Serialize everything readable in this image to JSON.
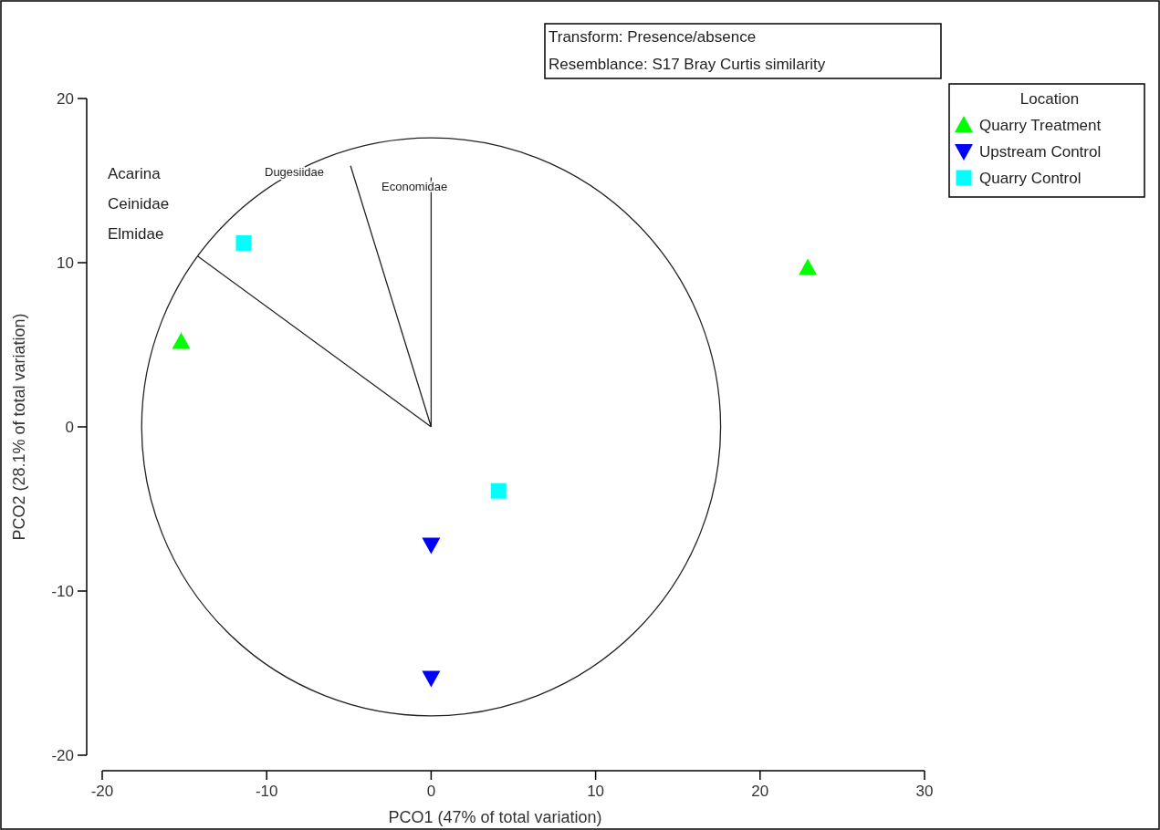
{
  "chart_data": {
    "type": "scatter",
    "xlabel": "PCO1 (47% of total variation)",
    "ylabel": "PCO2 (28.1% of total variation)",
    "legend_title": "Location",
    "legend": "top right",
    "grid": false,
    "xlim": [
      -20,
      30
    ],
    "xticks": [
      -20,
      -10,
      0,
      10,
      20,
      30
    ],
    "ylim": [
      -20,
      20
    ],
    "yticks": [
      -20,
      -10,
      0,
      10,
      20
    ],
    "annotations": [
      "Transform: Presence/absence",
      "Resemblance: S17 Bray Curtis similarity",
      "Acarina",
      "Ceinidae",
      "Elmidae",
      "Dugesiidae",
      "Economidae"
    ],
    "series": [
      {
        "type": "line",
        "color": "#222222",
        "marker": "none",
        "x": [
          0,
          -14.2,
          null,
          0,
          -4.9,
          null,
          0,
          0
        ],
        "values": [
          0,
          10.4,
          null,
          0,
          15.9,
          null,
          0,
          15.2
        ]
      },
      {
        "name": "Quarry Treatment",
        "color": "#00ff00",
        "marker": "triangle",
        "x": [
          22.9,
          -15.2
        ],
        "values": [
          9.7,
          5.2
        ]
      },
      {
        "name": "Upstream Control",
        "color": "#0000ff",
        "marker": "triangle-down",
        "x": [
          0,
          0
        ],
        "values": [
          -7.2,
          -15.3
        ]
      },
      {
        "name": "Quarry Control",
        "color": "#00ffff",
        "marker": "square",
        "x": [
          -11.4,
          4.1
        ],
        "values": [
          11.2,
          -3.9
        ]
      }
    ]
  }
}
